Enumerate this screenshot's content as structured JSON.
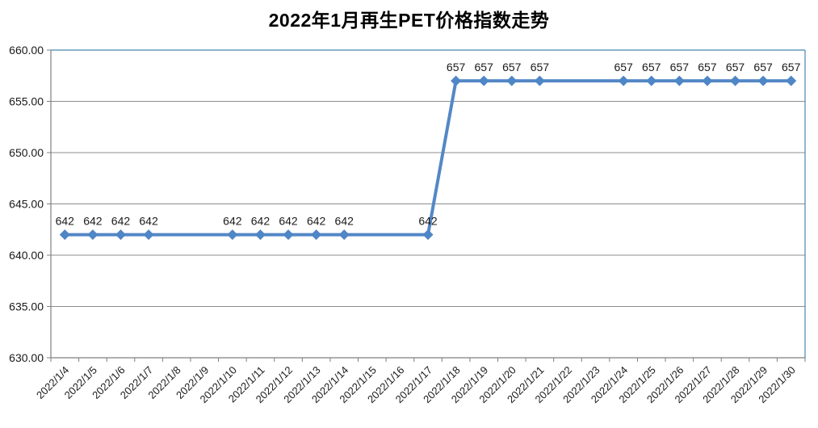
{
  "chart_data": {
    "type": "line",
    "title": "2022年1月再生PET价格指数走势",
    "categories": [
      "2022/1/4",
      "2022/1/5",
      "2022/1/6",
      "2022/1/7",
      "2022/1/8",
      "2022/1/9",
      "2022/1/10",
      "2022/1/11",
      "2022/1/12",
      "2022/1/13",
      "2022/1/14",
      "2022/1/15",
      "2022/1/16",
      "2022/1/17",
      "2022/1/18",
      "2022/1/19",
      "2022/1/20",
      "2022/1/21",
      "2022/1/22",
      "2022/1/23",
      "2022/1/24",
      "2022/1/25",
      "2022/1/26",
      "2022/1/27",
      "2022/1/28",
      "2022/1/29",
      "2022/1/30"
    ],
    "values": [
      642,
      642,
      642,
      642,
      642,
      642,
      642,
      642,
      642,
      642,
      642,
      642,
      642,
      642,
      657,
      657,
      657,
      657,
      657,
      657,
      657,
      657,
      657,
      657,
      657,
      657,
      657
    ],
    "data_labels": [
      "642",
      "642",
      "642",
      "642",
      null,
      null,
      "642",
      "642",
      "642",
      "642",
      "642",
      null,
      null,
      "642",
      "657",
      "657",
      "657",
      "657",
      null,
      null,
      "657",
      "657",
      "657",
      "657",
      "657",
      "657",
      "657"
    ],
    "ylim": [
      630,
      660
    ],
    "ytick_labels": [
      "660.00",
      "655.00",
      "650.00",
      "645.00",
      "640.00",
      "635.00",
      "630.00"
    ],
    "grid": true,
    "legend": "none",
    "marker_shape": "diamond",
    "colors": {
      "line": "#5487C6",
      "marker": "#4E86C6",
      "gridline": "#8C8C8C",
      "axis": "#7F7F7F",
      "plot_border": "#4787B0",
      "text": "#1A1A1A",
      "title": "#000000",
      "background": "#FFFFFF"
    }
  }
}
